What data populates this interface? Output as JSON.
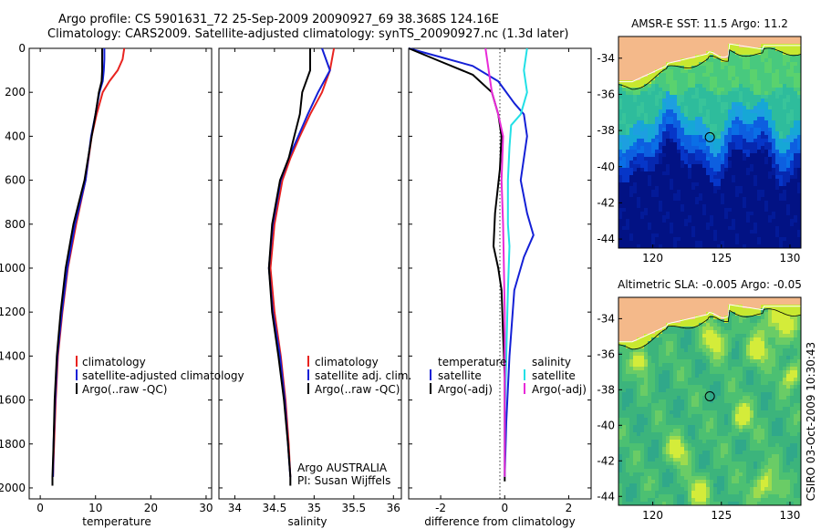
{
  "header": {
    "line1": "Argo profile: CS 5901631_72 25-Sep-2009 20090927_69 38.368S 124.16E",
    "line2": "Climatology: CARS2009. Satellite-adjusted climatology: synTS_20090927.nc (1.3d later)"
  },
  "colors": {
    "climatology": "#e8231f",
    "satellite": "#1420d6",
    "argo": "#000000",
    "sat_salinity": "#22e0e6",
    "argo_salinity": "#e82ad8",
    "land": "#f4b98a"
  },
  "chart_data": [
    {
      "type": "line",
      "xlabel": "temperature",
      "xlim": [
        -2,
        31
      ],
      "ylim": [
        2050,
        0
      ],
      "x_ticks": [
        0,
        10,
        20,
        30
      ],
      "y_ticks": [
        0,
        200,
        400,
        600,
        800,
        1000,
        1200,
        1400,
        1600,
        1800,
        2000
      ],
      "legend": [
        "climatology",
        "satellite-adjusted climatology",
        "Argo(..raw -QC)"
      ],
      "series": [
        {
          "name": "climatology",
          "color": "#e8231f",
          "x": [
            15.2,
            14.9,
            14.0,
            12.5,
            11.3,
            10.2,
            9.3,
            8.2,
            6.5,
            5.0,
            4.0,
            3.2,
            2.8,
            2.5,
            2.3
          ],
          "y": [
            0,
            50,
            100,
            150,
            200,
            300,
            400,
            600,
            800,
            1000,
            1200,
            1400,
            1600,
            1800,
            1950
          ]
        },
        {
          "name": "satellite-adjusted climatology",
          "color": "#1420d6",
          "x": [
            11.6,
            11.6,
            11.5,
            11.3,
            10.7,
            10.0,
            9.2,
            8.2,
            6.3,
            4.9,
            3.9,
            3.1,
            2.7,
            2.4,
            2.3
          ],
          "y": [
            0,
            50,
            100,
            150,
            200,
            300,
            400,
            600,
            800,
            1000,
            1200,
            1400,
            1600,
            1800,
            1950
          ]
        },
        {
          "name": "Argo(..raw -QC)",
          "color": "#000000",
          "x": [
            11.2,
            11.2,
            11.2,
            11.1,
            10.6,
            10.0,
            9.3,
            8.0,
            6.0,
            4.6,
            3.7,
            3.0,
            2.6,
            2.4,
            2.2,
            2.2
          ],
          "y": [
            0,
            50,
            100,
            150,
            200,
            300,
            400,
            600,
            800,
            1000,
            1200,
            1400,
            1600,
            1800,
            1950,
            1990
          ]
        }
      ]
    },
    {
      "type": "line",
      "xlabel": "salinity",
      "xlim": [
        33.8,
        36.1
      ],
      "ylim": [
        2050,
        0
      ],
      "x_ticks": [
        34,
        34.5,
        35,
        35.5,
        36
      ],
      "x_tick_labels": [
        "34",
        "34.5",
        "35",
        "35.5",
        "36"
      ],
      "y_ticks": [
        0,
        200,
        400,
        600,
        800,
        1000,
        1200,
        1400,
        1600,
        1800,
        2000
      ],
      "legend": [
        "climatology",
        "satellite adj. clim.",
        "Argo(..raw -QC)"
      ],
      "annotation": [
        "Argo AUSTRALIA",
        "PI: Susan Wijffels"
      ],
      "series": [
        {
          "name": "climatology",
          "color": "#e8231f",
          "x": [
            35.25,
            35.2,
            35.1,
            34.95,
            34.82,
            34.7,
            34.6,
            34.5,
            34.45,
            34.5,
            34.58,
            34.64,
            34.68,
            34.7
          ],
          "y": [
            0,
            100,
            200,
            300,
            400,
            500,
            600,
            800,
            1000,
            1200,
            1400,
            1600,
            1800,
            1950
          ]
        },
        {
          "name": "satellite adj. clim.",
          "color": "#1420d6",
          "x": [
            35.1,
            35.2,
            35.05,
            34.92,
            34.8,
            34.68,
            34.58,
            34.48,
            34.43,
            34.48,
            34.57,
            34.63,
            34.67,
            34.7
          ],
          "y": [
            0,
            100,
            200,
            300,
            400,
            500,
            600,
            800,
            1000,
            1200,
            1400,
            1600,
            1800,
            1950
          ]
        },
        {
          "name": "Argo(..raw -QC)",
          "color": "#000000",
          "x": [
            34.95,
            34.95,
            34.85,
            34.82,
            34.75,
            34.68,
            34.57,
            34.47,
            34.43,
            34.47,
            34.55,
            34.62,
            34.67,
            34.7,
            34.7
          ],
          "y": [
            0,
            100,
            200,
            300,
            400,
            500,
            600,
            800,
            1000,
            1200,
            1400,
            1600,
            1800,
            1950,
            1990
          ]
        }
      ]
    },
    {
      "type": "line",
      "xlabel": "difference from climatology",
      "xlim": [
        -3.0,
        2.7
      ],
      "ylim": [
        2050,
        0
      ],
      "x_ticks": [
        -2,
        0,
        2
      ],
      "y_ticks": [
        0,
        200,
        400,
        600,
        800,
        1000,
        1200,
        1400,
        1600,
        1800,
        2000
      ],
      "legend_left_title": "temperature",
      "legend_right_title": "salinity",
      "legend": [
        "satellite",
        "Argo(-adj)",
        "satellite",
        "Argo(-adj)"
      ],
      "series": [
        {
          "name": "temperature satellite",
          "color": "#1420d6",
          "x": [
            -3.0,
            -2.0,
            -1.0,
            -0.2,
            0.3,
            0.6,
            0.7,
            0.5,
            0.7,
            0.8,
            0.9,
            0.6,
            0.3,
            0.15,
            0.05,
            0.0
          ],
          "y": [
            0,
            40,
            80,
            150,
            250,
            300,
            400,
            600,
            750,
            800,
            850,
            950,
            1100,
            1400,
            1700,
            1950
          ]
        },
        {
          "name": "temperature Argo(-adj)",
          "color": "#000000",
          "x": [
            -3.0,
            -2.0,
            -1.0,
            -0.4,
            -0.2,
            -0.1,
            -0.15,
            -0.3,
            -0.35,
            -0.2,
            -0.1,
            -0.05,
            0.0,
            0.0,
            0.0
          ],
          "y": [
            0,
            60,
            120,
            200,
            300,
            400,
            550,
            750,
            900,
            1000,
            1100,
            1300,
            1500,
            1800,
            1970
          ]
        },
        {
          "name": "salinity satellite",
          "color": "#22e0e6",
          "x": [
            0.7,
            0.6,
            0.7,
            0.5,
            0.2,
            0.15,
            0.1,
            0.1,
            0.15,
            0.1,
            0.05,
            0.0,
            0.0
          ],
          "y": [
            0,
            100,
            200,
            300,
            350,
            450,
            600,
            800,
            900,
            1100,
            1400,
            1700,
            1950
          ]
        },
        {
          "name": "salinity Argo(-adj)",
          "color": "#e82ad8",
          "x": [
            -0.6,
            -0.5,
            -0.4,
            -0.2,
            -0.05,
            -0.1,
            -0.05,
            0.0,
            0.0,
            0.0
          ],
          "y": [
            0,
            100,
            200,
            300,
            400,
            600,
            800,
            1200,
            1600,
            1950
          ]
        }
      ]
    },
    {
      "type": "heatmap",
      "title": "AMSR-E SST: 11.5 Argo: 11.2",
      "xlim": [
        117.5,
        130.8
      ],
      "ylim": [
        -44.5,
        -32.8
      ],
      "x_ticks": [
        120,
        125,
        130
      ],
      "y_ticks": [
        -34,
        -36,
        -38,
        -40,
        -42,
        -44
      ],
      "marker": {
        "lon": 124.16,
        "lat": -38.368
      }
    },
    {
      "type": "heatmap",
      "title": "Altimetric SLA: -0.005 Argo: -0.05",
      "xlim": [
        117.5,
        130.8
      ],
      "ylim": [
        -44.5,
        -32.8
      ],
      "x_ticks": [
        120,
        125,
        130
      ],
      "y_ticks": [
        -34,
        -36,
        -38,
        -40,
        -42,
        -44
      ],
      "marker": {
        "lon": 124.16,
        "lat": -38.368
      }
    }
  ],
  "side_label": "CSIRO 03-Oct-2009 10:30:43"
}
